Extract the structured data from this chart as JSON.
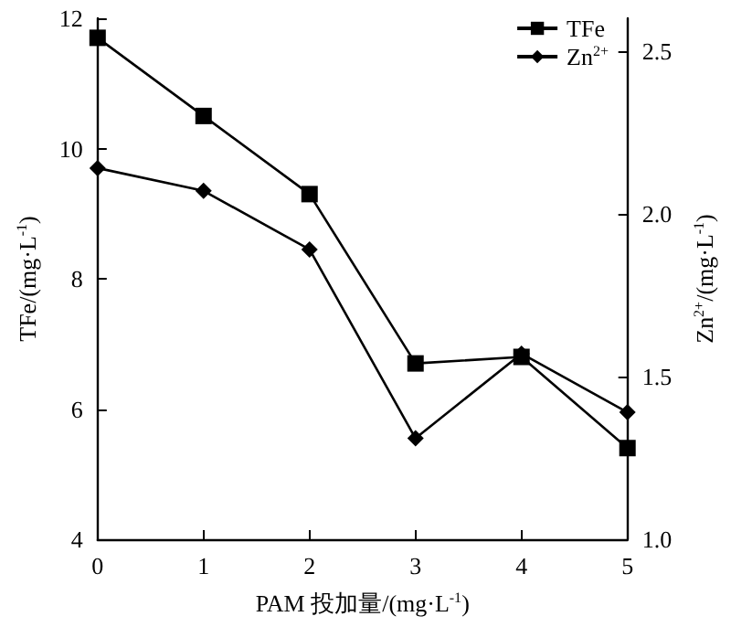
{
  "chart_data": {
    "type": "line",
    "xlabel": "PAM 投加量/(mg·L$^{-1}$)",
    "ylabel": "TFe/(mg·L$^{-1}$)",
    "y2label": "Zn$^{2+}$/(mg·L$^{-1}$)",
    "x": [
      0,
      1,
      2,
      3,
      4,
      5
    ],
    "series": [
      {
        "name": "TFe",
        "color": "#000000",
        "marker": "square",
        "values": [
          11.7,
          10.5,
          9.3,
          6.7,
          6.8,
          5.4
        ]
      },
      {
        "name": "Zn$^{2+}$",
        "color": "#000000",
        "marker": "diamond",
        "axis": "y2",
        "values": [
          2.14,
          2.07,
          1.89,
          1.31,
          1.57,
          1.39
        ]
      }
    ],
    "xlim": [
      0,
      5
    ],
    "xticks": [
      0,
      1,
      2,
      3,
      4,
      5
    ],
    "ylim": [
      4,
      12
    ],
    "yticks": [
      4,
      6,
      8,
      10,
      12
    ],
    "y2lim": [
      1.0,
      2.6
    ],
    "y2ticks": [
      {
        "value": 1,
        "label": "1.0"
      },
      {
        "value": 1.5,
        "label": "1.5"
      },
      {
        "value": 2,
        "label": "2.0"
      },
      {
        "value": 2.5,
        "label": "2.5"
      }
    ],
    "legend": "top right",
    "grid": false
  }
}
